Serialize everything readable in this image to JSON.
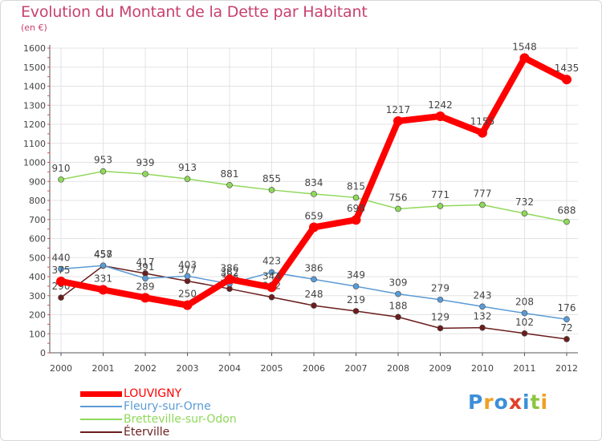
{
  "chart_data": {
    "type": "line",
    "title": "Evolution du Montant de la Dette par Habitant",
    "subtitle": "(en €)",
    "x": [
      "2000",
      "2001",
      "2002",
      "2003",
      "2004",
      "2005",
      "2006",
      "2007",
      "2008",
      "2009",
      "2010",
      "2011",
      "2012"
    ],
    "ylim": [
      0,
      1600
    ],
    "yticks": [
      0,
      100,
      200,
      300,
      400,
      500,
      600,
      700,
      800,
      900,
      1000,
      1100,
      1200,
      1300,
      1400,
      1500,
      1600
    ],
    "grid": true,
    "legend_position": "bottom-left",
    "series": [
      {
        "name": "LOUVIGNY",
        "color": "#ff0000",
        "values": [
          375,
          331,
          289,
          250,
          386,
          344,
          659,
          698,
          1217,
          1242,
          1155,
          1548,
          1435
        ]
      },
      {
        "name": "Fleury-sur-Orne",
        "color": "#5b9bd5",
        "values": [
          440,
          458,
          391,
          403,
          362,
          423,
          386,
          349,
          309,
          279,
          243,
          208,
          176
        ]
      },
      {
        "name": "Bretteville-sur-Odon",
        "color": "#8fd85a",
        "values": [
          910,
          953,
          939,
          913,
          881,
          855,
          834,
          815,
          756,
          771,
          777,
          732,
          688
        ]
      },
      {
        "name": "Éterville",
        "color": "#6b1d1d",
        "values": [
          290,
          457,
          417,
          377,
          336,
          292,
          248,
          219,
          188,
          129,
          132,
          102,
          72
        ]
      }
    ]
  },
  "logo": {
    "letters": [
      "P",
      "r",
      "o",
      "x",
      "i",
      "t",
      "i"
    ],
    "colors": [
      "#3d8fd8",
      "#f0a020",
      "#3d8fd8",
      "#e0402a",
      "#3d8fd8",
      "#8cc63f",
      "#f0a020"
    ]
  }
}
